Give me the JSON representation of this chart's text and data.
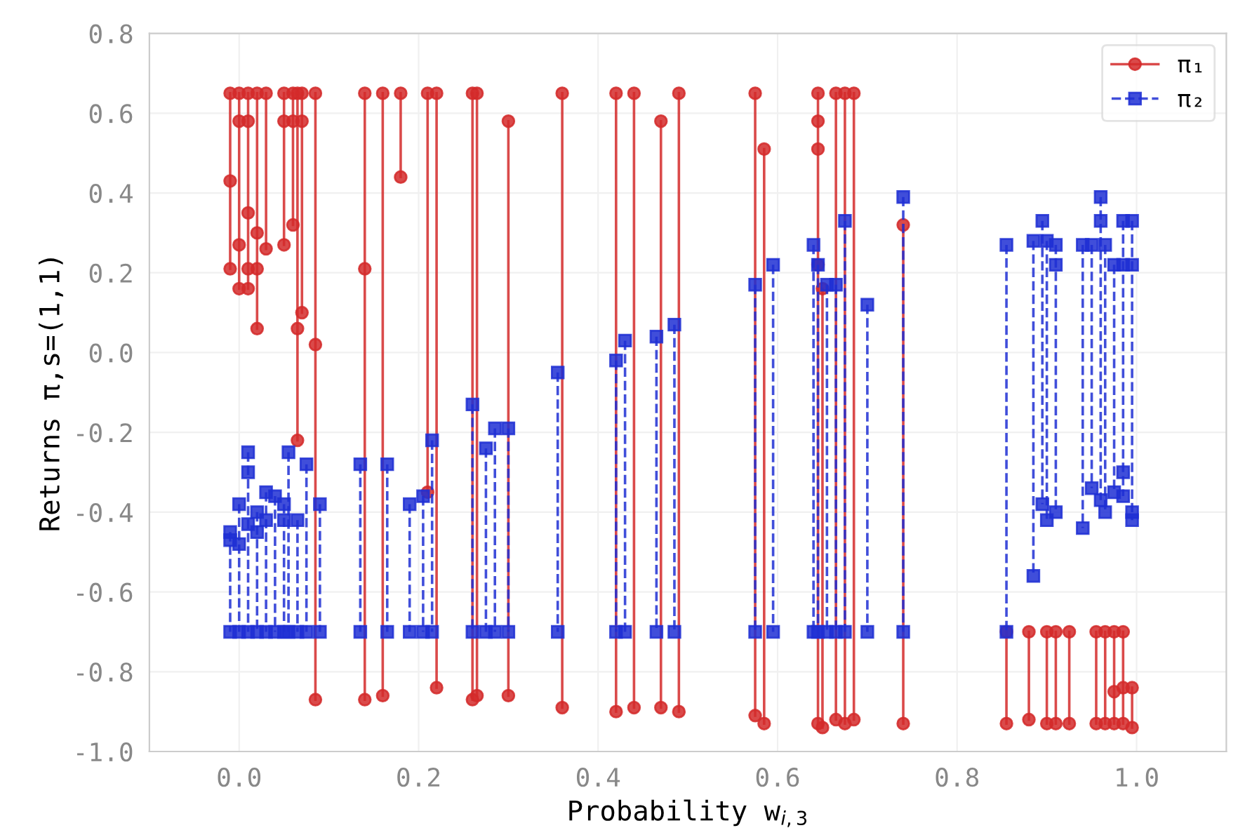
{
  "chart_data": {
    "type": "line",
    "xlabel": "Probability w$_{i,3}$",
    "ylabel": "Returns π,s=(1,1)",
    "xlim": [
      -0.1,
      1.1
    ],
    "xticks": [
      {
        "value": 0,
        "label": "0.0"
      },
      0.2,
      0.4,
      0.6,
      0.8,
      {
        "value": 1,
        "label": "1.0"
      }
    ],
    "ylim": [
      -1.0,
      0.8
    ],
    "yticks": [
      {
        "value": -1,
        "label": "-1.0"
      },
      -0.8,
      -0.6,
      -0.4,
      -0.2,
      {
        "value": 0,
        "label": "0.0"
      },
      0.2,
      0.4,
      0.6,
      0.8
    ],
    "grid": true,
    "legend": "top right",
    "series": [
      {
        "name": "π₁",
        "color": "#d42a2a",
        "marker": "circle",
        "line_style": "solid",
        "x": [
          -0.01,
          -0.01,
          -0.01,
          null,
          0.0,
          0.0,
          0.0,
          0.0,
          null,
          0.01,
          0.01,
          0.01,
          0.01,
          0.01,
          null,
          0.02,
          0.02,
          0.02,
          0.02,
          null,
          0.03,
          0.03,
          null,
          0.05,
          0.05,
          0.05,
          null,
          0.06,
          0.06,
          0.06,
          null,
          0.065,
          0.065,
          0.065,
          null,
          0.07,
          0.07,
          0.07,
          null,
          0.085,
          0.085,
          0.085,
          null,
          0.14,
          0.14,
          0.14,
          null,
          0.16,
          0.16,
          null,
          0.18,
          0.18,
          null,
          0.21,
          0.21,
          null,
          0.22,
          0.22,
          null,
          0.26,
          0.26,
          null,
          0.265,
          0.265,
          null,
          0.3,
          0.3,
          null,
          0.36,
          0.36,
          null,
          0.42,
          0.42,
          null,
          0.44,
          0.44,
          null,
          0.47,
          0.47,
          null,
          0.49,
          0.49,
          null,
          0.575,
          0.575,
          null,
          0.585,
          0.585,
          null,
          0.645,
          0.645,
          0.645,
          0.645,
          0.645,
          null,
          0.65,
          0.65,
          null,
          0.665,
          0.665,
          null,
          0.675,
          0.675,
          null,
          0.685,
          0.685,
          null,
          0.74,
          0.74,
          null,
          0.855,
          0.855,
          null,
          0.88,
          0.88,
          null,
          0.9,
          0.9,
          null,
          0.91,
          0.91,
          null,
          0.925,
          0.925,
          null,
          0.955,
          0.955,
          null,
          0.965,
          0.965,
          null,
          0.975,
          0.975,
          0.975,
          null,
          0.985,
          0.985,
          0.985,
          null,
          0.995,
          0.995
        ],
        "values": [
          0.65,
          0.43,
          0.21,
          null,
          0.65,
          0.58,
          0.27,
          0.16,
          null,
          0.65,
          0.58,
          0.35,
          0.21,
          0.16,
          null,
          0.65,
          0.3,
          0.21,
          0.06,
          null,
          0.65,
          0.26,
          null,
          0.65,
          0.58,
          0.27,
          null,
          0.65,
          0.58,
          0.32,
          null,
          0.65,
          0.06,
          -0.22,
          null,
          0.65,
          0.58,
          0.1,
          null,
          0.65,
          0.02,
          -0.87,
          null,
          0.65,
          0.21,
          -0.87,
          null,
          0.65,
          -0.86,
          null,
          0.65,
          0.44,
          null,
          0.65,
          -0.35,
          null,
          0.65,
          -0.84,
          null,
          0.65,
          -0.87,
          null,
          0.65,
          -0.86,
          null,
          0.58,
          -0.86,
          null,
          0.65,
          -0.89,
          null,
          0.65,
          -0.9,
          null,
          0.65,
          -0.89,
          null,
          0.58,
          -0.89,
          null,
          0.65,
          -0.9,
          null,
          0.65,
          -0.91,
          null,
          0.51,
          -0.93,
          null,
          0.65,
          0.58,
          0.51,
          0.22,
          -0.93,
          null,
          0.16,
          -0.94,
          null,
          0.65,
          -0.92,
          null,
          0.65,
          -0.93,
          null,
          0.65,
          -0.92,
          null,
          0.32,
          -0.93,
          null,
          -0.7,
          -0.93,
          null,
          -0.7,
          -0.92,
          null,
          -0.7,
          -0.93,
          null,
          -0.7,
          -0.93,
          null,
          -0.7,
          -0.93,
          null,
          -0.7,
          -0.93,
          null,
          -0.7,
          -0.93,
          null,
          -0.7,
          -0.85,
          -0.93,
          null,
          -0.7,
          -0.84,
          -0.93,
          null,
          -0.84,
          -0.94
        ]
      },
      {
        "name": "π₂",
        "color": "#1f2fd4",
        "marker": "square",
        "line_style": "dashed",
        "x": [
          -0.01,
          -0.01,
          -0.01,
          null,
          0.0,
          0.0,
          0.0,
          null,
          0.01,
          0.01,
          0.01,
          0.01,
          null,
          0.02,
          0.02,
          0.02,
          null,
          0.03,
          0.03,
          0.03,
          null,
          0.04,
          0.04,
          null,
          0.05,
          0.05,
          0.05,
          null,
          0.055,
          0.055,
          null,
          0.065,
          0.065,
          null,
          0.075,
          0.075,
          null,
          0.09,
          0.09,
          null,
          0.135,
          0.135,
          null,
          0.165,
          0.165,
          null,
          0.19,
          0.19,
          null,
          0.205,
          0.205,
          null,
          0.215,
          0.215,
          null,
          0.26,
          0.26,
          null,
          0.275,
          0.275,
          null,
          0.285,
          0.285,
          null,
          0.3,
          0.3,
          null,
          0.355,
          0.355,
          null,
          0.42,
          0.42,
          null,
          0.43,
          0.43,
          null,
          0.465,
          0.465,
          null,
          0.485,
          0.485,
          null,
          0.575,
          0.575,
          null,
          0.595,
          0.595,
          null,
          0.64,
          0.64,
          null,
          0.645,
          0.645,
          null,
          0.655,
          0.655,
          null,
          0.665,
          0.665,
          null,
          0.675,
          0.675,
          null,
          0.7,
          0.7,
          null,
          0.74,
          0.74,
          null,
          0.855,
          0.855,
          null,
          0.885,
          0.885,
          null,
          0.895,
          0.895,
          null,
          0.9,
          0.9,
          null,
          0.91,
          0.91,
          0.91,
          null,
          0.94,
          0.94,
          null,
          0.95,
          0.95,
          null,
          0.96,
          0.96,
          0.96,
          null,
          0.965,
          0.965,
          null,
          0.975,
          0.975,
          null,
          0.985,
          0.985,
          0.985,
          0.985,
          null,
          0.995,
          0.995,
          0.995,
          0.995
        ],
        "values": [
          -0.45,
          -0.47,
          -0.7,
          null,
          -0.38,
          -0.48,
          -0.7,
          null,
          -0.25,
          -0.3,
          -0.43,
          -0.7,
          null,
          -0.4,
          -0.45,
          -0.7,
          null,
          -0.35,
          -0.42,
          -0.7,
          null,
          -0.36,
          -0.7,
          null,
          -0.38,
          -0.42,
          -0.7,
          null,
          -0.25,
          -0.7,
          null,
          -0.42,
          -0.7,
          null,
          -0.28,
          -0.7,
          null,
          -0.38,
          -0.7,
          null,
          -0.28,
          -0.7,
          null,
          -0.28,
          -0.7,
          null,
          -0.38,
          -0.7,
          null,
          -0.36,
          -0.7,
          null,
          -0.22,
          -0.7,
          null,
          -0.13,
          -0.7,
          null,
          -0.24,
          -0.7,
          null,
          -0.19,
          -0.7,
          null,
          -0.19,
          -0.7,
          null,
          -0.05,
          -0.7,
          null,
          -0.02,
          -0.7,
          null,
          0.03,
          -0.7,
          null,
          0.04,
          -0.7,
          null,
          0.07,
          -0.7,
          null,
          0.17,
          -0.7,
          null,
          0.22,
          -0.7,
          null,
          0.27,
          -0.7,
          null,
          0.22,
          -0.7,
          null,
          0.17,
          -0.7,
          null,
          0.17,
          -0.7,
          null,
          0.33,
          -0.7,
          null,
          0.12,
          -0.7,
          null,
          0.39,
          -0.7,
          null,
          0.27,
          -0.7,
          null,
          0.28,
          -0.56,
          null,
          0.33,
          -0.38,
          null,
          0.28,
          -0.42,
          null,
          0.27,
          0.22,
          -0.4,
          null,
          0.27,
          -0.44,
          null,
          0.27,
          -0.34,
          null,
          0.39,
          0.33,
          -0.37,
          null,
          0.27,
          -0.4,
          null,
          0.22,
          -0.35,
          null,
          0.33,
          0.22,
          -0.3,
          -0.36,
          null,
          0.33,
          0.22,
          -0.4,
          -0.42
        ]
      }
    ]
  }
}
